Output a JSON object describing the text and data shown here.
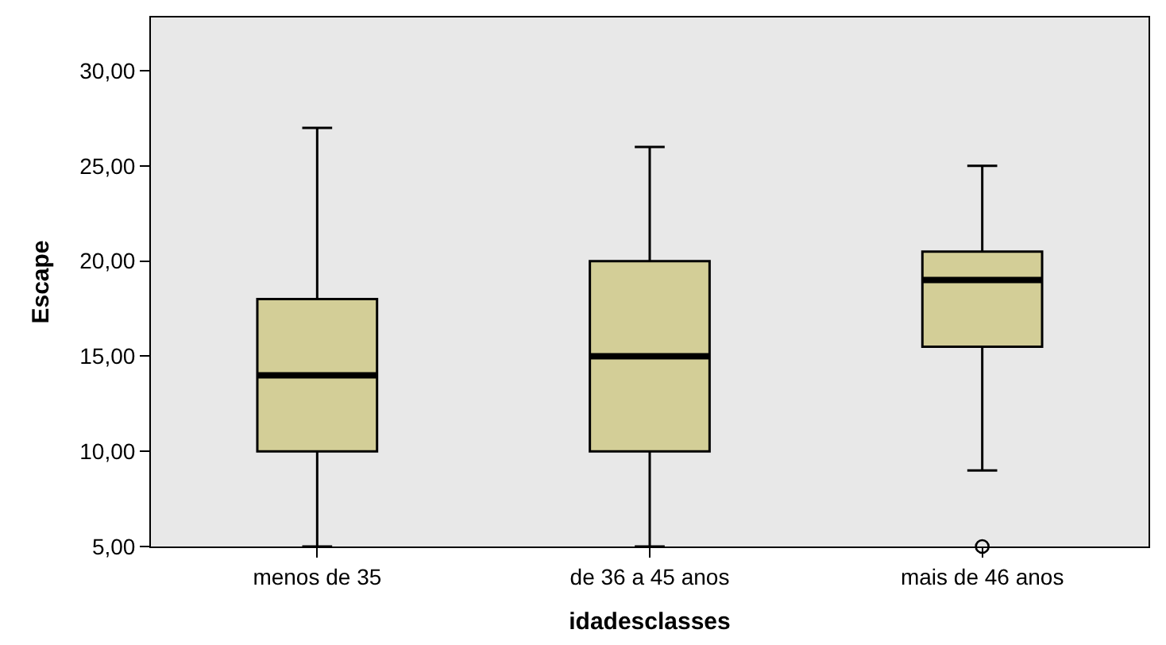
{
  "chart_data": {
    "type": "box",
    "xlabel": "idadesclasses",
    "ylabel": "Escape",
    "categories": [
      "menos de 35",
      "de 36 a 45 anos",
      "mais de 46 anos"
    ],
    "color": "#d3ce97",
    "boxes": [
      {
        "low": 5,
        "q1": 10,
        "median": 14,
        "q3": 18,
        "high": 27
      },
      {
        "low": 5,
        "q1": 10,
        "median": 15,
        "q3": 20,
        "high": 26
      },
      {
        "low": 9,
        "q1": 15.5,
        "median": 19,
        "q3": 20.5,
        "high": 25,
        "outliers": [
          5
        ]
      }
    ],
    "ylim": [
      5,
      32.8
    ],
    "yticks": [
      {
        "value": 5,
        "label": "5,00"
      },
      {
        "value": 10,
        "label": "10,00"
      },
      {
        "value": 15,
        "label": "15,00"
      },
      {
        "value": 20,
        "label": "20,00"
      },
      {
        "value": 25,
        "label": "25,00"
      },
      {
        "value": 30,
        "label": "30,00"
      }
    ],
    "grid": false
  }
}
